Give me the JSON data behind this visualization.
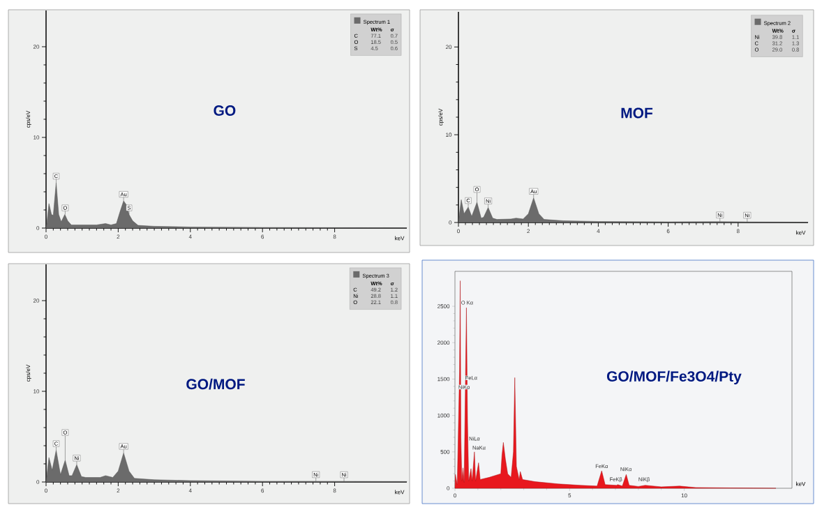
{
  "chart_data": [
    {
      "type": "area",
      "title": "GO",
      "xlabel": "keV",
      "ylabel": "cps/eV",
      "x": [
        0,
        0.02,
        0.08,
        0.15,
        0.2,
        0.28,
        0.35,
        0.42,
        0.52,
        0.6,
        0.7,
        1.0,
        1.4,
        1.65,
        1.8,
        1.95,
        2.05,
        2.15,
        2.22,
        2.3,
        2.4,
        2.55,
        3,
        4,
        6,
        8,
        10
      ],
      "series": [
        {
          "name": "Spectrum 1",
          "color": "#6b6b6b",
          "values": [
            0,
            0.5,
            2.7,
            1.5,
            1.4,
            5.0,
            1.5,
            0.7,
            1.5,
            0.8,
            0.35,
            0.35,
            0.35,
            0.5,
            0.35,
            0.5,
            1.8,
            3.0,
            2.6,
            1.5,
            0.8,
            0.3,
            0.2,
            0.12,
            0.07,
            0.05,
            0.04
          ]
        }
      ],
      "xlim": [
        0,
        10
      ],
      "ylim": [
        0,
        24
      ],
      "xticks": [
        0,
        2,
        4,
        6,
        8
      ],
      "yticks": [
        0,
        10,
        20
      ],
      "legend": "top right",
      "annotations": [
        "Wt%",
        "σ",
        "C",
        "77.1",
        "0.7",
        "O",
        "18.5",
        "0.5",
        "S",
        "4.5",
        "0.6",
        {
          "text": "C",
          "x": 0.28,
          "y": 5.0
        },
        {
          "text": "O",
          "x": 0.53,
          "y": 1.5
        },
        {
          "text": "Au",
          "x": 2.15,
          "y": 3.0
        },
        {
          "text": "S",
          "x": 2.3,
          "y": 1.5
        }
      ]
    },
    {
      "type": "area",
      "title": "MOF",
      "xlabel": "keV",
      "ylabel": "cps/eV",
      "x": [
        0,
        0.03,
        0.08,
        0.16,
        0.28,
        0.38,
        0.53,
        0.65,
        0.72,
        0.85,
        0.98,
        1.1,
        1.5,
        1.65,
        1.85,
        2.0,
        2.15,
        2.3,
        2.45,
        3,
        4,
        6,
        7.48,
        8.26,
        10
      ],
      "series": [
        {
          "name": "Spectrum 2",
          "color": "#6b6b6b",
          "values": [
            0,
            1.0,
            2.6,
            1.0,
            1.75,
            0.7,
            2.3,
            0.5,
            0.6,
            1.7,
            0.5,
            0.35,
            0.4,
            0.5,
            0.4,
            1.0,
            2.8,
            1.0,
            0.35,
            0.2,
            0.12,
            0.08,
            0.1,
            0.07,
            0.04
          ]
        }
      ],
      "xlim": [
        0,
        10
      ],
      "ylim": [
        0,
        24
      ],
      "xticks": [
        0,
        2,
        4,
        6,
        8
      ],
      "yticks": [
        0,
        10,
        20
      ],
      "legend": "top right",
      "annotations": [
        "Wt%",
        "σ",
        "Ni",
        "39.8",
        "1.1",
        "C",
        "31.2",
        "1.3",
        "O",
        "29.0",
        "0.8",
        {
          "text": "C",
          "x": 0.28,
          "y": 1.75
        },
        {
          "text": "O",
          "x": 0.53,
          "y": 2.3
        },
        {
          "text": "Ni",
          "x": 0.85,
          "y": 1.7
        },
        {
          "text": "Au",
          "x": 2.15,
          "y": 2.8
        },
        {
          "text": "Ni",
          "x": 7.48,
          "y": 0.1
        },
        {
          "text": "Ni",
          "x": 8.26,
          "y": 0.07
        }
      ]
    },
    {
      "type": "area",
      "title": "GO/MOF",
      "xlabel": "keV",
      "ylabel": "cps/eV",
      "x": [
        0,
        0.03,
        0.08,
        0.17,
        0.28,
        0.4,
        0.53,
        0.64,
        0.72,
        0.85,
        0.98,
        1.1,
        1.5,
        1.65,
        1.85,
        2.0,
        2.15,
        2.3,
        2.45,
        3,
        4,
        6,
        7.48,
        8.26,
        10
      ],
      "series": [
        {
          "name": "Spectrum 3",
          "color": "#6b6b6b",
          "values": [
            0,
            1.0,
            2.7,
            1.3,
            3.5,
            0.8,
            2.4,
            0.7,
            0.7,
            1.9,
            0.6,
            0.5,
            0.5,
            0.7,
            0.5,
            1.2,
            3.2,
            1.2,
            0.4,
            0.25,
            0.15,
            0.08,
            0.08,
            0.07,
            0.05
          ]
        }
      ],
      "xlim": [
        0,
        10
      ],
      "ylim": [
        0,
        24
      ],
      "xticks": [
        0,
        2,
        4,
        6,
        8
      ],
      "yticks": [
        0,
        10,
        20
      ],
      "legend": "top right",
      "annotations": [
        "Wt%",
        "σ",
        "C",
        "49.2",
        "1.2",
        "Ni",
        "28.8",
        "1.1",
        "O",
        "22.1",
        "0.8",
        {
          "text": "C",
          "x": 0.28,
          "y": 3.5
        },
        {
          "text": "O",
          "x": 0.53,
          "y": 2.4
        },
        {
          "text": "Ni",
          "x": 0.85,
          "y": 1.9
        },
        {
          "text": "Au",
          "x": 2.15,
          "y": 3.2
        },
        {
          "text": "Ni",
          "x": 7.48,
          "y": 0.08
        },
        {
          "text": "Ni",
          "x": 8.26,
          "y": 0.07
        }
      ]
    },
    {
      "type": "area",
      "title": "GO/MOF/Fe3O4/Pty",
      "xlabel": "keV",
      "x": [
        0,
        0.02,
        0.1,
        0.2,
        0.23,
        0.26,
        0.3,
        0.35,
        0.4,
        0.5,
        0.55,
        0.6,
        0.7,
        0.75,
        0.85,
        0.9,
        1.03,
        1.1,
        1.5,
        1.8,
        2.0,
        2.05,
        2.11,
        2.2,
        2.3,
        2.45,
        2.55,
        2.61,
        2.68,
        2.8,
        2.85,
        2.95,
        3.5,
        4.5,
        5.5,
        6.2,
        6.4,
        6.55,
        7.05,
        7.1,
        7.3,
        7.47,
        7.6,
        8.0,
        8.3,
        9,
        9.8,
        10.5,
        12,
        13,
        14
      ],
      "series": [
        {
          "color": "#e8181e",
          "values": [
            0,
            190,
            50,
            1600,
            2850,
            700,
            100,
            280,
            80,
            2480,
            900,
            100,
            270,
            100,
            500,
            100,
            350,
            120,
            150,
            180,
            200,
            450,
            630,
            400,
            200,
            150,
            500,
            1520,
            300,
            120,
            230,
            120,
            90,
            60,
            40,
            30,
            240,
            50,
            40,
            50,
            30,
            190,
            40,
            25,
            40,
            20,
            30,
            10,
            5,
            2,
            0
          ]
        }
      ],
      "xlim": [
        0,
        14.7
      ],
      "ylim": [
        0,
        2980
      ],
      "xticks": [
        0,
        5,
        10
      ],
      "yticks": [
        0,
        500,
        1000,
        1500,
        2000,
        2500
      ],
      "annotations": [
        {
          "text": "O Kα",
          "x": 0.53,
          "y": 2550
        },
        {
          "text": "FeLα",
          "x": 0.71,
          "y": 1517
        },
        {
          "text": "NiKα",
          "x": 0.4,
          "y": 1390
        },
        {
          "text": "NiLα",
          "x": 0.85,
          "y": 683
        },
        {
          "text": "NaKα",
          "x": 1.05,
          "y": 557
        },
        {
          "text": "FeKα",
          "x": 6.4,
          "y": 303
        },
        {
          "text": "FeKβ",
          "x": 7.02,
          "y": 117
        },
        {
          "text": "NiKα",
          "x": 7.46,
          "y": 263
        },
        {
          "text": "NiKβ",
          "x": 8.25,
          "y": 117
        }
      ]
    }
  ]
}
